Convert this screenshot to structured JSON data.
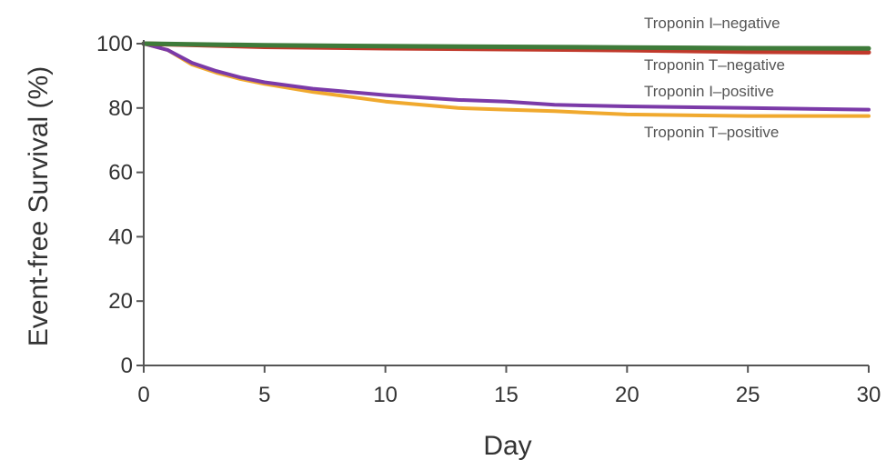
{
  "chart_data": {
    "type": "line",
    "title": "",
    "xlabel": "Day",
    "ylabel": "Event-free Survival (%)",
    "xlim": [
      0,
      30
    ],
    "ylim": [
      0,
      100
    ],
    "x_ticks": [
      0,
      5,
      10,
      15,
      20,
      25,
      30
    ],
    "y_ticks": [
      0,
      20,
      40,
      60,
      80,
      100
    ],
    "grid": false,
    "series": [
      {
        "name": "Troponin I–negative",
        "color": "#3e7b3a",
        "points": [
          [
            0,
            100
          ],
          [
            5,
            99.5
          ],
          [
            10,
            99.2
          ],
          [
            15,
            99
          ],
          [
            20,
            98.8
          ],
          [
            25,
            98.6
          ],
          [
            30,
            98.5
          ]
        ]
      },
      {
        "name": "Troponin T–negative",
        "color": "#c0392b",
        "points": [
          [
            0,
            100
          ],
          [
            5,
            99
          ],
          [
            10,
            98.6
          ],
          [
            15,
            98.3
          ],
          [
            20,
            98
          ],
          [
            25,
            97.5
          ],
          [
            30,
            97.3
          ]
        ]
      },
      {
        "name": "Troponin I–positive",
        "color": "#7b3aa8",
        "points": [
          [
            0,
            100
          ],
          [
            1,
            98
          ],
          [
            2,
            94
          ],
          [
            3,
            91.5
          ],
          [
            4,
            89.5
          ],
          [
            5,
            88
          ],
          [
            7,
            86
          ],
          [
            10,
            84
          ],
          [
            13,
            82.5
          ],
          [
            15,
            82
          ],
          [
            17,
            81
          ],
          [
            20,
            80.5
          ],
          [
            25,
            80
          ],
          [
            30,
            79.5
          ]
        ]
      },
      {
        "name": "Troponin T–positive",
        "color": "#f0a92e",
        "points": [
          [
            0,
            100
          ],
          [
            1,
            98
          ],
          [
            2,
            93.5
          ],
          [
            3,
            91
          ],
          [
            4,
            89
          ],
          [
            5,
            87.5
          ],
          [
            7,
            85
          ],
          [
            10,
            82
          ],
          [
            13,
            80
          ],
          [
            15,
            79.5
          ],
          [
            17,
            79
          ],
          [
            20,
            78
          ],
          [
            25,
            77.5
          ],
          [
            30,
            77.5
          ]
        ]
      }
    ]
  }
}
